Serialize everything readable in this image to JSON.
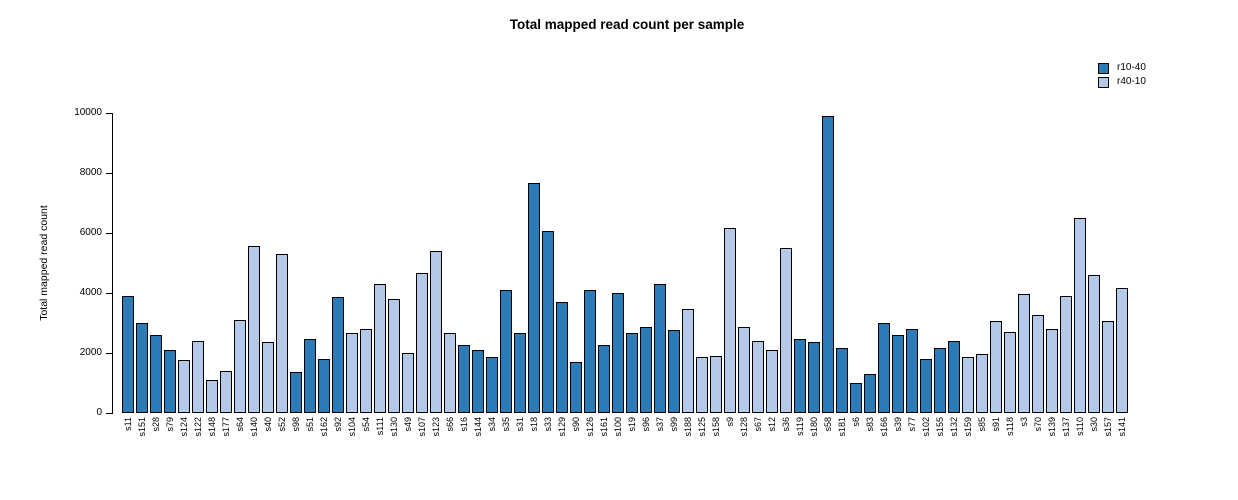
{
  "chart_data": {
    "type": "bar",
    "title": "Total mapped read count per sample",
    "xlabel": "",
    "ylabel": "Total mapped read count",
    "ylim": [
      0,
      10000
    ],
    "yticks": [
      0,
      2000,
      4000,
      6000,
      8000,
      10000
    ],
    "grid": false,
    "legend_position": "top-right",
    "colors": {
      "r10-40": "#2b7bb9",
      "r40-10": "#b4c9e7"
    },
    "bar_border_color": "#000000",
    "legend": [
      {
        "label": "r10-40"
      },
      {
        "label": "r40-10"
      }
    ],
    "bars": [
      {
        "label": "s11",
        "value": 3900,
        "group": "r10-40"
      },
      {
        "label": "s151",
        "value": 3000,
        "group": "r10-40"
      },
      {
        "label": "s28",
        "value": 2600,
        "group": "r10-40"
      },
      {
        "label": "s79",
        "value": 2100,
        "group": "r10-40"
      },
      {
        "label": "s124",
        "value": 1750,
        "group": "r40-10"
      },
      {
        "label": "s122",
        "value": 2400,
        "group": "r40-10"
      },
      {
        "label": "s148",
        "value": 1100,
        "group": "r40-10"
      },
      {
        "label": "s177",
        "value": 1400,
        "group": "r40-10"
      },
      {
        "label": "s64",
        "value": 3100,
        "group": "r40-10"
      },
      {
        "label": "s140",
        "value": 5550,
        "group": "r40-10"
      },
      {
        "label": "s40",
        "value": 2350,
        "group": "r40-10"
      },
      {
        "label": "s52",
        "value": 5300,
        "group": "r40-10"
      },
      {
        "label": "s98",
        "value": 1350,
        "group": "r10-40"
      },
      {
        "label": "s51",
        "value": 2450,
        "group": "r10-40"
      },
      {
        "label": "s162",
        "value": 1800,
        "group": "r10-40"
      },
      {
        "label": "s92",
        "value": 3850,
        "group": "r10-40"
      },
      {
        "label": "s104",
        "value": 2650,
        "group": "r40-10"
      },
      {
        "label": "s54",
        "value": 2800,
        "group": "r40-10"
      },
      {
        "label": "s111",
        "value": 4300,
        "group": "r40-10"
      },
      {
        "label": "s130",
        "value": 3800,
        "group": "r40-10"
      },
      {
        "label": "s49",
        "value": 2000,
        "group": "r40-10"
      },
      {
        "label": "s107",
        "value": 4650,
        "group": "r40-10"
      },
      {
        "label": "s123",
        "value": 5400,
        "group": "r40-10"
      },
      {
        "label": "s66",
        "value": 2650,
        "group": "r40-10"
      },
      {
        "label": "s16",
        "value": 2250,
        "group": "r10-40"
      },
      {
        "label": "s144",
        "value": 2100,
        "group": "r10-40"
      },
      {
        "label": "s34",
        "value": 1850,
        "group": "r10-40"
      },
      {
        "label": "s35",
        "value": 4100,
        "group": "r10-40"
      },
      {
        "label": "s31",
        "value": 2650,
        "group": "r10-40"
      },
      {
        "label": "s18",
        "value": 7650,
        "group": "r10-40"
      },
      {
        "label": "s33",
        "value": 6050,
        "group": "r10-40"
      },
      {
        "label": "s129",
        "value": 3700,
        "group": "r10-40"
      },
      {
        "label": "s90",
        "value": 1700,
        "group": "r10-40"
      },
      {
        "label": "s126",
        "value": 4100,
        "group": "r10-40"
      },
      {
        "label": "s161",
        "value": 2250,
        "group": "r10-40"
      },
      {
        "label": "s100",
        "value": 4000,
        "group": "r10-40"
      },
      {
        "label": "s19",
        "value": 2650,
        "group": "r10-40"
      },
      {
        "label": "s96",
        "value": 2850,
        "group": "r10-40"
      },
      {
        "label": "s37",
        "value": 4300,
        "group": "r10-40"
      },
      {
        "label": "s99",
        "value": 2750,
        "group": "r10-40"
      },
      {
        "label": "s188",
        "value": 3450,
        "group": "r40-10"
      },
      {
        "label": "s125",
        "value": 1850,
        "group": "r40-10"
      },
      {
        "label": "s158",
        "value": 1900,
        "group": "r40-10"
      },
      {
        "label": "s9",
        "value": 6150,
        "group": "r40-10"
      },
      {
        "label": "s128",
        "value": 2850,
        "group": "r40-10"
      },
      {
        "label": "s67",
        "value": 2400,
        "group": "r40-10"
      },
      {
        "label": "s12",
        "value": 2100,
        "group": "r40-10"
      },
      {
        "label": "s36",
        "value": 5500,
        "group": "r40-10"
      },
      {
        "label": "s119",
        "value": 2450,
        "group": "r10-40"
      },
      {
        "label": "s180",
        "value": 2350,
        "group": "r10-40"
      },
      {
        "label": "s58",
        "value": 9900,
        "group": "r10-40"
      },
      {
        "label": "s181",
        "value": 2150,
        "group": "r10-40"
      },
      {
        "label": "s6",
        "value": 1000,
        "group": "r10-40"
      },
      {
        "label": "s83",
        "value": 1300,
        "group": "r10-40"
      },
      {
        "label": "s166",
        "value": 3000,
        "group": "r10-40"
      },
      {
        "label": "s39",
        "value": 2600,
        "group": "r10-40"
      },
      {
        "label": "s77",
        "value": 2800,
        "group": "r10-40"
      },
      {
        "label": "s102",
        "value": 1800,
        "group": "r10-40"
      },
      {
        "label": "s155",
        "value": 2150,
        "group": "r10-40"
      },
      {
        "label": "s132",
        "value": 2400,
        "group": "r10-40"
      },
      {
        "label": "s159",
        "value": 1850,
        "group": "r40-10"
      },
      {
        "label": "s85",
        "value": 1950,
        "group": "r40-10"
      },
      {
        "label": "s91",
        "value": 3050,
        "group": "r40-10"
      },
      {
        "label": "s118",
        "value": 2700,
        "group": "r40-10"
      },
      {
        "label": "s3",
        "value": 3950,
        "group": "r40-10"
      },
      {
        "label": "s70",
        "value": 3250,
        "group": "r40-10"
      },
      {
        "label": "s139",
        "value": 2800,
        "group": "r40-10"
      },
      {
        "label": "s137",
        "value": 3900,
        "group": "r40-10"
      },
      {
        "label": "s110",
        "value": 6500,
        "group": "r40-10"
      },
      {
        "label": "s30",
        "value": 4600,
        "group": "r40-10"
      },
      {
        "label": "s157",
        "value": 3050,
        "group": "r40-10"
      },
      {
        "label": "s141",
        "value": 4150,
        "group": "r40-10"
      }
    ]
  }
}
